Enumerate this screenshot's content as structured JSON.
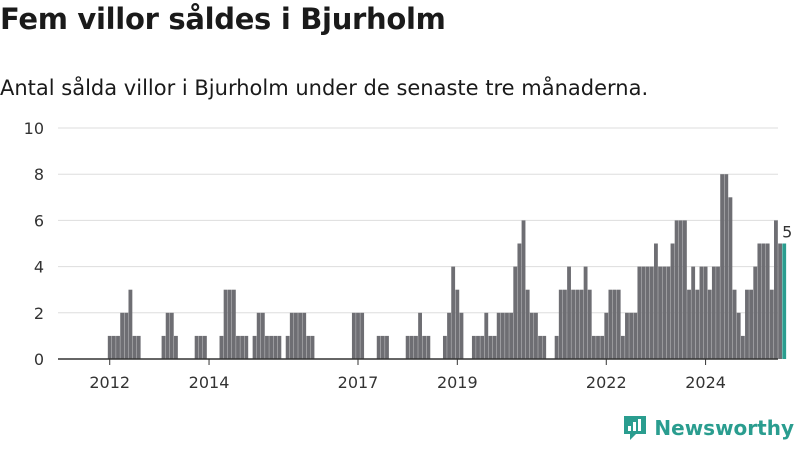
{
  "title": "Fem villor såldes i Bjurholm",
  "subtitle": "Antal sålda villor i Bjurholm under de senaste tre månaderna.",
  "brand": {
    "name": "Newsworthy",
    "icon": "newsworthy-logo-icon"
  },
  "colors": {
    "bar": "#6e6e73",
    "highlight": "#2a9d8f",
    "grid": "#dddddd",
    "axis": "#333333",
    "text": "#333333"
  },
  "chart_data": {
    "type": "bar",
    "title": "",
    "xlabel": "",
    "ylabel": "",
    "ylim": [
      0,
      10
    ],
    "y_ticks": [
      0,
      2,
      4,
      6,
      8,
      10
    ],
    "x_tick_labels": [
      "2012",
      "2014",
      "2017",
      "2019",
      "2022",
      "2024"
    ],
    "x_start": "2011-01",
    "x_end": "2025-06",
    "grid": true,
    "highlight_label": "5",
    "bars": [
      {
        "x": "2012-01",
        "value": 1
      },
      {
        "x": "2012-02",
        "value": 1
      },
      {
        "x": "2012-03",
        "value": 1
      },
      {
        "x": "2012-04",
        "value": 2
      },
      {
        "x": "2012-05",
        "value": 2
      },
      {
        "x": "2012-06",
        "value": 3
      },
      {
        "x": "2012-07",
        "value": 1
      },
      {
        "x": "2012-08",
        "value": 1
      },
      {
        "x": "2013-02",
        "value": 1
      },
      {
        "x": "2013-03",
        "value": 2
      },
      {
        "x": "2013-04",
        "value": 2
      },
      {
        "x": "2013-05",
        "value": 1
      },
      {
        "x": "2013-10",
        "value": 1
      },
      {
        "x": "2013-11",
        "value": 1
      },
      {
        "x": "2013-12",
        "value": 1
      },
      {
        "x": "2014-04",
        "value": 1
      },
      {
        "x": "2014-05",
        "value": 3
      },
      {
        "x": "2014-06",
        "value": 3
      },
      {
        "x": "2014-07",
        "value": 3
      },
      {
        "x": "2014-08",
        "value": 1
      },
      {
        "x": "2014-09",
        "value": 1
      },
      {
        "x": "2014-10",
        "value": 1
      },
      {
        "x": "2014-12",
        "value": 1
      },
      {
        "x": "2015-01",
        "value": 2
      },
      {
        "x": "2015-02",
        "value": 2
      },
      {
        "x": "2015-03",
        "value": 1
      },
      {
        "x": "2015-04",
        "value": 1
      },
      {
        "x": "2015-05",
        "value": 1
      },
      {
        "x": "2015-06",
        "value": 1
      },
      {
        "x": "2015-08",
        "value": 1
      },
      {
        "x": "2015-09",
        "value": 2
      },
      {
        "x": "2015-10",
        "value": 2
      },
      {
        "x": "2015-11",
        "value": 2
      },
      {
        "x": "2015-12",
        "value": 2
      },
      {
        "x": "2016-01",
        "value": 1
      },
      {
        "x": "2016-02",
        "value": 1
      },
      {
        "x": "2016-12",
        "value": 2
      },
      {
        "x": "2017-01",
        "value": 2
      },
      {
        "x": "2017-02",
        "value": 2
      },
      {
        "x": "2017-06",
        "value": 1
      },
      {
        "x": "2017-07",
        "value": 1
      },
      {
        "x": "2017-08",
        "value": 1
      },
      {
        "x": "2018-01",
        "value": 1
      },
      {
        "x": "2018-02",
        "value": 1
      },
      {
        "x": "2018-03",
        "value": 1
      },
      {
        "x": "2018-04",
        "value": 2
      },
      {
        "x": "2018-05",
        "value": 1
      },
      {
        "x": "2018-06",
        "value": 1
      },
      {
        "x": "2018-10",
        "value": 1
      },
      {
        "x": "2018-11",
        "value": 2
      },
      {
        "x": "2018-12",
        "value": 4
      },
      {
        "x": "2019-01",
        "value": 3
      },
      {
        "x": "2019-02",
        "value": 2
      },
      {
        "x": "2019-05",
        "value": 1
      },
      {
        "x": "2019-06",
        "value": 1
      },
      {
        "x": "2019-07",
        "value": 1
      },
      {
        "x": "2019-08",
        "value": 2
      },
      {
        "x": "2019-09",
        "value": 1
      },
      {
        "x": "2019-10",
        "value": 1
      },
      {
        "x": "2019-11",
        "value": 2
      },
      {
        "x": "2019-12",
        "value": 2
      },
      {
        "x": "2020-01",
        "value": 2
      },
      {
        "x": "2020-02",
        "value": 2
      },
      {
        "x": "2020-03",
        "value": 4
      },
      {
        "x": "2020-04",
        "value": 5
      },
      {
        "x": "2020-05",
        "value": 6
      },
      {
        "x": "2020-06",
        "value": 3
      },
      {
        "x": "2020-07",
        "value": 2
      },
      {
        "x": "2020-08",
        "value": 2
      },
      {
        "x": "2020-09",
        "value": 1
      },
      {
        "x": "2020-10",
        "value": 1
      },
      {
        "x": "2021-01",
        "value": 1
      },
      {
        "x": "2021-02",
        "value": 3
      },
      {
        "x": "2021-03",
        "value": 3
      },
      {
        "x": "2021-04",
        "value": 4
      },
      {
        "x": "2021-05",
        "value": 3
      },
      {
        "x": "2021-06",
        "value": 3
      },
      {
        "x": "2021-07",
        "value": 3
      },
      {
        "x": "2021-08",
        "value": 4
      },
      {
        "x": "2021-09",
        "value": 3
      },
      {
        "x": "2021-10",
        "value": 1
      },
      {
        "x": "2021-11",
        "value": 1
      },
      {
        "x": "2021-12",
        "value": 1
      },
      {
        "x": "2022-01",
        "value": 2
      },
      {
        "x": "2022-02",
        "value": 3
      },
      {
        "x": "2022-03",
        "value": 3
      },
      {
        "x": "2022-04",
        "value": 3
      },
      {
        "x": "2022-05",
        "value": 1
      },
      {
        "x": "2022-06",
        "value": 2
      },
      {
        "x": "2022-07",
        "value": 2
      },
      {
        "x": "2022-08",
        "value": 2
      },
      {
        "x": "2022-09",
        "value": 4
      },
      {
        "x": "2022-10",
        "value": 4
      },
      {
        "x": "2022-11",
        "value": 4
      },
      {
        "x": "2022-12",
        "value": 4
      },
      {
        "x": "2023-01",
        "value": 5
      },
      {
        "x": "2023-02",
        "value": 4
      },
      {
        "x": "2023-03",
        "value": 4
      },
      {
        "x": "2023-04",
        "value": 4
      },
      {
        "x": "2023-05",
        "value": 5
      },
      {
        "x": "2023-06",
        "value": 6
      },
      {
        "x": "2023-07",
        "value": 6
      },
      {
        "x": "2023-08",
        "value": 6
      },
      {
        "x": "2023-09",
        "value": 3
      },
      {
        "x": "2023-10",
        "value": 4
      },
      {
        "x": "2023-11",
        "value": 3
      },
      {
        "x": "2023-12",
        "value": 4
      },
      {
        "x": "2024-01",
        "value": 4
      },
      {
        "x": "2024-02",
        "value": 3
      },
      {
        "x": "2024-03",
        "value": 4
      },
      {
        "x": "2024-04",
        "value": 4
      },
      {
        "x": "2024-05",
        "value": 8
      },
      {
        "x": "2024-06",
        "value": 8
      },
      {
        "x": "2024-07",
        "value": 7
      },
      {
        "x": "2024-08",
        "value": 3
      },
      {
        "x": "2024-09",
        "value": 2
      },
      {
        "x": "2024-10",
        "value": 1
      },
      {
        "x": "2024-11",
        "value": 3
      },
      {
        "x": "2024-12",
        "value": 3
      },
      {
        "x": "2025-01",
        "value": 4
      },
      {
        "x": "2025-02",
        "value": 5
      },
      {
        "x": "2025-03",
        "value": 5
      },
      {
        "x": "2025-04",
        "value": 5
      },
      {
        "x": "2025-05",
        "value": 3
      },
      {
        "x": "2025-06",
        "value": 6
      },
      {
        "x": "2025-07",
        "value": 5
      },
      {
        "x": "2025-08",
        "value": 5,
        "highlight": true
      }
    ]
  }
}
